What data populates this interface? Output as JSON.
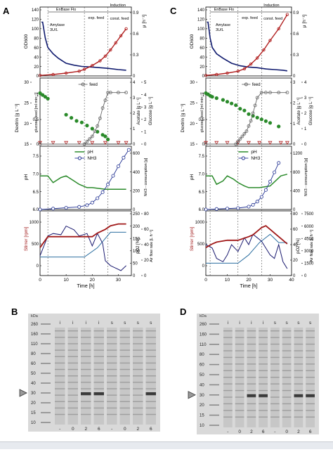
{
  "panel_letters": [
    "A",
    "B",
    "C",
    "D"
  ],
  "phase_labels": {
    "batch": "EnBase Flo",
    "exp": "exp. feed",
    "induction": "Induction",
    "const": "const. feed",
    "amylase_top": "Amylase",
    "amylase_bot": "3U/L"
  },
  "axis_titles": {
    "od": "OD600",
    "mu": "μ [h⁻¹]",
    "dextrin": "Dextrin [g L⁻¹]",
    "glucose_feed": "glucose-feed [ml min⁻¹]",
    "acetate": "Acetate [g L⁻¹]",
    "glucose": "Glucose [g L⁻¹]",
    "ph": "pH",
    "nh3": "NH3 - consumption [g]",
    "stirrer": "Stirrer [rpm]",
    "po2": "pO2 [%]",
    "airflow": "Air flow rate [L h⁻¹]",
    "time": "Time [h]"
  },
  "legend": {
    "feed": "feed",
    "ph": "pH",
    "nh3": "NH3"
  },
  "ticks": {
    "A": {
      "p1_left": [
        "0",
        "20",
        "40",
        "60",
        "80",
        "100",
        "120",
        "140"
      ],
      "p1_right": [
        "0",
        "0.3",
        "0.6",
        "0.9"
      ],
      "p2_left": [
        "15",
        "20",
        "25",
        "30"
      ],
      "p2_left_inner": [
        "0",
        "0.5",
        "1"
      ],
      "p2_right_acet": [
        "0",
        "1",
        "2",
        "3",
        "4"
      ],
      "p2_right_glc": [
        "0",
        "1",
        "2",
        "3",
        "4",
        "5"
      ],
      "p3_left": [
        "6.0",
        "6.5",
        "7.0",
        "7.5"
      ],
      "p3_right": [
        "0",
        "200",
        "400",
        "600"
      ],
      "p4_left": [
        "0",
        "500",
        "1000"
      ],
      "p4_right_po2": [
        "0",
        "50",
        "100",
        "150",
        "200",
        "250"
      ],
      "p4_right_inner": [
        "0",
        "20",
        "40",
        "60",
        "80"
      ],
      "time": [
        "0",
        "10",
        "20",
        "30"
      ]
    },
    "C": {
      "p1_left": [
        "0",
        "20",
        "40",
        "60",
        "80",
        "100",
        "120",
        "140"
      ],
      "p1_right": [
        "0",
        "0.3",
        "0.6",
        "0.9"
      ],
      "p2_left": [
        "15",
        "20",
        "25",
        "30"
      ],
      "p2_left_inner": [
        "0",
        "0.5",
        "1"
      ],
      "p2_right_acet": [
        "0",
        "1",
        "2",
        "3"
      ],
      "p2_right_glc": [
        "0",
        "1",
        "2",
        "3",
        "4"
      ],
      "p3_left": [
        "6.0",
        "6.5",
        "7.0",
        "7.5"
      ],
      "p3_right": [
        "0",
        "400",
        "800",
        "1200"
      ],
      "p4_left": [
        "0",
        "500",
        "1000"
      ],
      "p4_right_po2": [
        "0",
        "20",
        "40",
        "60",
        "80"
      ],
      "p4_right_inner": [
        "0",
        "1500",
        "3000",
        "4500",
        "6000",
        "7500"
      ],
      "time": [
        "0",
        "10",
        "20",
        "30",
        "40"
      ]
    }
  },
  "gels": {
    "B": {
      "kda_label": "kDa",
      "markers": [
        "260",
        "160",
        "110",
        "80",
        "60",
        "50",
        "40",
        "30",
        "20",
        "15",
        "10"
      ],
      "top_labels": [
        "i",
        "i",
        "i",
        "i",
        "s",
        "s",
        "s",
        "s"
      ],
      "bottom_labels": [
        "-",
        "0",
        "2",
        "6",
        "-",
        "0",
        "2",
        "6"
      ]
    },
    "D": {
      "kda_label": "kDa",
      "markers": [
        "260",
        "160",
        "110",
        "80",
        "60",
        "50",
        "40",
        "30",
        "20",
        "15",
        "10"
      ],
      "top_labels": [
        "i",
        "i",
        "i",
        "i",
        "s",
        "s",
        "s",
        "s"
      ],
      "bottom_labels": [
        "-",
        "0",
        "2",
        "6",
        "-",
        "0",
        "2",
        "6"
      ]
    }
  },
  "colors": {
    "od": "#0f1a6e",
    "mu": "#b01e1e",
    "feed": "#666666",
    "green": "#2a8a2a",
    "nh3": "#233393",
    "stirrer": "#a01818",
    "po2": "#1b1b70",
    "airflow": "#2c6fa0",
    "gel_bg": "#d9d9d9",
    "footer": "#e7eaef"
  },
  "chart_data": [
    {
      "type": "line",
      "panel": "A",
      "x_unit": "Time [h]",
      "xlim": [
        0,
        35
      ],
      "phases": [
        3,
        17,
        26
      ],
      "od": {
        "ylim": [
          0,
          140
        ],
        "x": [
          0,
          5,
          10,
          15,
          17,
          20,
          23,
          25,
          27,
          29,
          31,
          33
        ],
        "y": [
          1,
          3,
          6,
          10,
          14,
          22,
          32,
          42,
          55,
          70,
          85,
          100
        ]
      },
      "mu": {
        "ylim": [
          0,
          1.0
        ],
        "x": [
          0.5,
          1,
          2,
          3,
          5,
          7,
          10,
          13,
          16,
          20,
          23,
          26,
          30,
          33
        ],
        "y": [
          0.85,
          0.85,
          0.6,
          0.45,
          0.35,
          0.28,
          0.2,
          0.17,
          0.15,
          0.14,
          0.13,
          0.12,
          0.1,
          0.09
        ]
      },
      "dextrin": {
        "ylim": [
          15,
          32
        ],
        "x": [
          0,
          1,
          2,
          3
        ],
        "y": [
          29,
          28.5,
          28,
          27.5
        ]
      },
      "glucose_feed": {
        "ylim": [
          0,
          1.2
        ],
        "x": [
          0,
          17,
          18,
          19,
          20,
          21,
          22,
          23,
          24,
          25,
          26,
          27,
          30,
          33
        ],
        "y": [
          0,
          0,
          0.05,
          0.1,
          0.15,
          0.25,
          0.35,
          0.5,
          0.7,
          0.85,
          1.0,
          1.0,
          1.0,
          1.0
        ]
      },
      "acetate": {
        "ylim": [
          0,
          4
        ],
        "x": [
          10,
          12,
          14,
          16,
          18,
          20,
          22,
          24,
          25,
          26
        ],
        "y": [
          1.9,
          1.7,
          1.5,
          1.4,
          1.2,
          1.0,
          0.8,
          0.6,
          0.5,
          0.3
        ]
      },
      "glucose": {
        "ylim": [
          0,
          5
        ],
        "x": [
          0,
          5,
          10,
          15,
          20,
          25,
          30,
          33
        ],
        "y": [
          0,
          0,
          0,
          0,
          0,
          0,
          0,
          0
        ]
      },
      "ph": {
        "ylim": [
          6.0,
          7.8
        ],
        "x": [
          0,
          3,
          5,
          8,
          10,
          13,
          15,
          18,
          20,
          25,
          30,
          33
        ],
        "y": [
          7.0,
          7.0,
          6.8,
          6.95,
          7.0,
          6.85,
          6.75,
          6.65,
          6.65,
          6.6,
          6.6,
          6.6
        ]
      },
      "nh3": {
        "ylim": [
          0,
          700
        ],
        "x": [
          0,
          5,
          10,
          15,
          18,
          20,
          22,
          24,
          26,
          28,
          30,
          32,
          34
        ],
        "y": [
          0,
          10,
          20,
          30,
          50,
          80,
          130,
          200,
          290,
          390,
          500,
          600,
          690
        ]
      },
      "stirrer": {
        "ylim": [
          0,
          1200
        ],
        "x": [
          0,
          3,
          5,
          10,
          15,
          18,
          20,
          22,
          25,
          27,
          30,
          33
        ],
        "y": [
          500,
          800,
          800,
          800,
          800,
          800,
          800,
          900,
          1000,
          1100,
          1150,
          1150
        ]
      },
      "po2": {
        "ylim": [
          0,
          250
        ],
        "x": [
          0,
          3,
          5,
          8,
          10,
          13,
          15,
          18,
          20,
          22,
          24,
          25,
          27,
          29,
          31,
          33
        ],
        "y": [
          80,
          160,
          170,
          165,
          200,
          185,
          160,
          170,
          120,
          170,
          130,
          60,
          40,
          30,
          20,
          40
        ]
      },
      "airflow": {
        "ylim": [
          0,
          100
        ],
        "x": [
          0,
          17,
          22,
          27,
          33
        ],
        "y": [
          30,
          30,
          45,
          70,
          70
        ]
      }
    },
    {
      "type": "line",
      "panel": "C",
      "x_unit": "Time [h]",
      "xlim": [
        0,
        40
      ],
      "phases": [
        2,
        15,
        26
      ],
      "od": {
        "ylim": [
          0,
          140
        ],
        "x": [
          0,
          5,
          10,
          15,
          18,
          21,
          24,
          27,
          30,
          34,
          38
        ],
        "y": [
          1,
          3,
          6,
          10,
          15,
          25,
          38,
          55,
          75,
          100,
          130
        ]
      },
      "mu": {
        "ylim": [
          0,
          1.0
        ],
        "x": [
          0.5,
          1,
          2,
          3,
          5,
          8,
          12,
          16,
          20,
          24,
          28,
          32,
          36,
          38
        ],
        "y": [
          0.85,
          0.85,
          0.6,
          0.45,
          0.35,
          0.28,
          0.2,
          0.16,
          0.14,
          0.13,
          0.11,
          0.1,
          0.09,
          0.08
        ]
      },
      "dextrin": {
        "ylim": [
          15,
          32
        ],
        "x": [
          0,
          1,
          2,
          3
        ],
        "y": [
          29,
          28.7,
          28.3,
          28
        ]
      },
      "glucose_feed": {
        "ylim": [
          0,
          1.2
        ],
        "x": [
          0,
          14,
          15,
          16,
          17,
          18,
          19,
          20,
          21,
          22,
          23,
          24,
          26,
          28,
          30,
          34,
          38
        ],
        "y": [
          0,
          0,
          0.05,
          0.1,
          0.15,
          0.2,
          0.25,
          0.35,
          0.45,
          0.6,
          0.75,
          0.9,
          1.0,
          1.0,
          1.0,
          1.0,
          1.0
        ]
      },
      "acetate": {
        "ylim": [
          0,
          3.5
        ],
        "x": [
          5,
          8,
          10,
          12,
          14,
          16,
          18,
          20,
          22,
          24,
          26,
          28,
          30,
          34
        ],
        "y": [
          2.6,
          2.5,
          2.4,
          2.3,
          2.2,
          2.0,
          1.9,
          1.7,
          1.6,
          1.5,
          1.4,
          1.3,
          1.2,
          1.0
        ]
      },
      "glucose": {
        "ylim": [
          0,
          4.5
        ],
        "x": [
          0,
          5,
          10,
          15,
          20,
          25,
          30,
          35,
          38
        ],
        "y": [
          0,
          0,
          0,
          0,
          0,
          0,
          0,
          0,
          0
        ]
      },
      "ph": {
        "ylim": [
          6.0,
          7.8
        ],
        "x": [
          0,
          3,
          5,
          8,
          10,
          13,
          15,
          18,
          20,
          25,
          30,
          35,
          38
        ],
        "y": [
          7.0,
          7.0,
          6.75,
          6.85,
          7.0,
          6.9,
          6.8,
          6.7,
          6.65,
          6.65,
          6.7,
          7.0,
          7.05
        ]
      },
      "nh3": {
        "ylim": [
          0,
          1300
        ],
        "x": [
          0,
          5,
          10,
          15,
          20,
          22,
          24,
          26,
          28,
          30,
          32,
          34
        ],
        "y": [
          0,
          10,
          20,
          30,
          60,
          100,
          170,
          270,
          420,
          600,
          800,
          1000
        ]
      },
      "stirrer": {
        "ylim": [
          0,
          1200
        ],
        "x": [
          0,
          3,
          5,
          10,
          15,
          20,
          22,
          24,
          26,
          28,
          30,
          33,
          36,
          38
        ],
        "y": [
          500,
          600,
          650,
          700,
          700,
          800,
          850,
          950,
          1050,
          1100,
          1000,
          850,
          700,
          600
        ]
      },
      "po2": {
        "ylim": [
          0,
          90
        ],
        "x": [
          0,
          3,
          5,
          8,
          10,
          12,
          15,
          18,
          20,
          22,
          24,
          26,
          28,
          30,
          32,
          34,
          36,
          38
        ],
        "y": [
          45,
          40,
          25,
          20,
          30,
          45,
          35,
          55,
          45,
          60,
          55,
          50,
          40,
          30,
          25,
          45,
          20,
          10
        ]
      },
      "airflow": {
        "ylim": [
          0,
          7500
        ],
        "x": [
          0,
          15,
          20,
          25,
          30,
          34,
          38
        ],
        "y": [
          1500,
          1500,
          2500,
          4000,
          5000,
          4000,
          4000
        ]
      }
    }
  ]
}
